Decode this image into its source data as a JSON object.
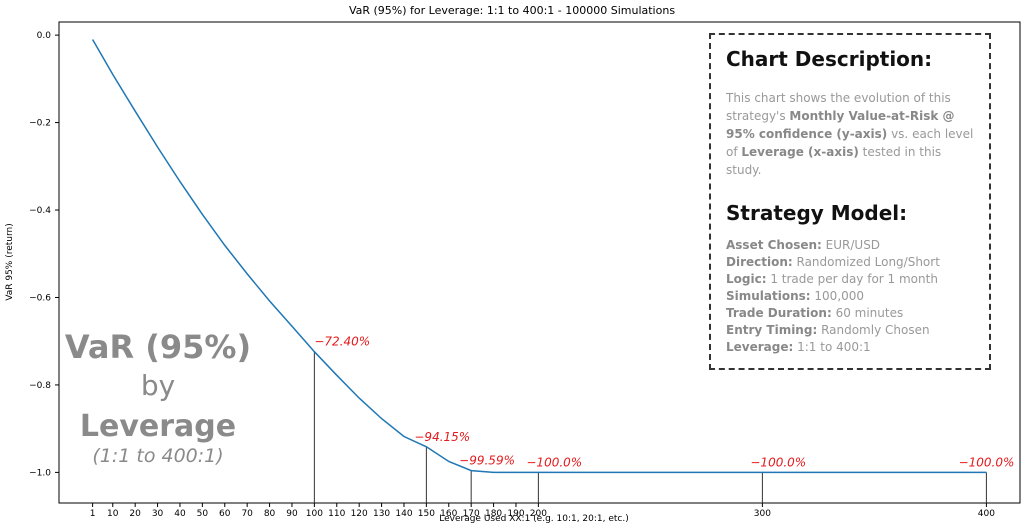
{
  "chart_data": {
    "type": "line",
    "title": "VaR (95%) for Leverage: 1:1 to 400:1 - 100000 Simulations",
    "xlabel": "Leverage Used XX:1 (e.g. 10:1, 20:1, etc.)",
    "ylabel": "VaR 95% (return)",
    "xlim": [
      -14,
      415
    ],
    "ylim": [
      -1.07,
      0.03
    ],
    "x_ticks": [
      1,
      10,
      20,
      30,
      40,
      50,
      60,
      70,
      80,
      90,
      100,
      110,
      120,
      130,
      140,
      150,
      160,
      170,
      180,
      190,
      200,
      300,
      400
    ],
    "y_ticks": [
      0.0,
      -0.2,
      -0.4,
      -0.6,
      -0.8,
      -1.0
    ],
    "y_tick_labels": [
      "0.0",
      "−0.2",
      "−0.4",
      "−0.6",
      "−0.8",
      "−1.0"
    ],
    "series": [
      {
        "color": "#1f77b4",
        "x": [
          1,
          10,
          20,
          30,
          40,
          50,
          60,
          70,
          80,
          90,
          100,
          110,
          120,
          130,
          140,
          150,
          160,
          170,
          180,
          190,
          200,
          250,
          300,
          350,
          400
        ],
        "y": [
          -0.01,
          -0.09,
          -0.174,
          -0.256,
          -0.335,
          -0.41,
          -0.481,
          -0.546,
          -0.608,
          -0.666,
          -0.724,
          -0.778,
          -0.83,
          -0.877,
          -0.918,
          -0.9415,
          -0.975,
          -0.9959,
          -1.0,
          -1.0,
          -1.0,
          -1.0,
          -1.0,
          -1.0,
          -1.0
        ]
      }
    ],
    "annotations": [
      {
        "x": 100,
        "y": -0.724,
        "text": "−72.40%"
      },
      {
        "x": 150,
        "y": -0.9415,
        "text": "−94.15%"
      },
      {
        "x": 170,
        "y": -0.9959,
        "text": "−99.59%"
      },
      {
        "x": 200,
        "y": -1.0,
        "text": "−100.0%"
      },
      {
        "x": 300,
        "y": -1.0,
        "text": "−100.0%"
      },
      {
        "x": 400,
        "y": -1.0,
        "text": "−100.0%"
      }
    ],
    "overlay": {
      "line1": "VaR (95%)",
      "line2": "by",
      "line3": "Leverage",
      "line4": "(1:1 to 400:1)"
    },
    "grid": false,
    "legend": "none"
  },
  "description": {
    "title": "Chart Description:",
    "text_1": "This chart shows the evolution of this strategy's ",
    "bold_1": "Monthly Value-at-Risk @ 95% confidence (y-axis)",
    "text_2": " vs. each level of ",
    "bold_2": "Leverage (x-axis)",
    "text_3": " tested in this study."
  },
  "model": {
    "title": "Strategy Model:",
    "rows": [
      {
        "label": "Asset Chosen:",
        "value": " EUR/USD"
      },
      {
        "label": "Direction:",
        "value": " Randomized Long/Short"
      },
      {
        "label": "Logic:",
        "value": " 1 trade per day for 1 month"
      },
      {
        "label": "Simulations:",
        "value": " 100,000"
      },
      {
        "label": "Trade Duration:",
        "value": " 60 minutes"
      },
      {
        "label": "Entry Timing:",
        "value": " Randomly Chosen"
      },
      {
        "label": "Leverage:",
        "value": " 1:1 to 400:1"
      }
    ]
  }
}
